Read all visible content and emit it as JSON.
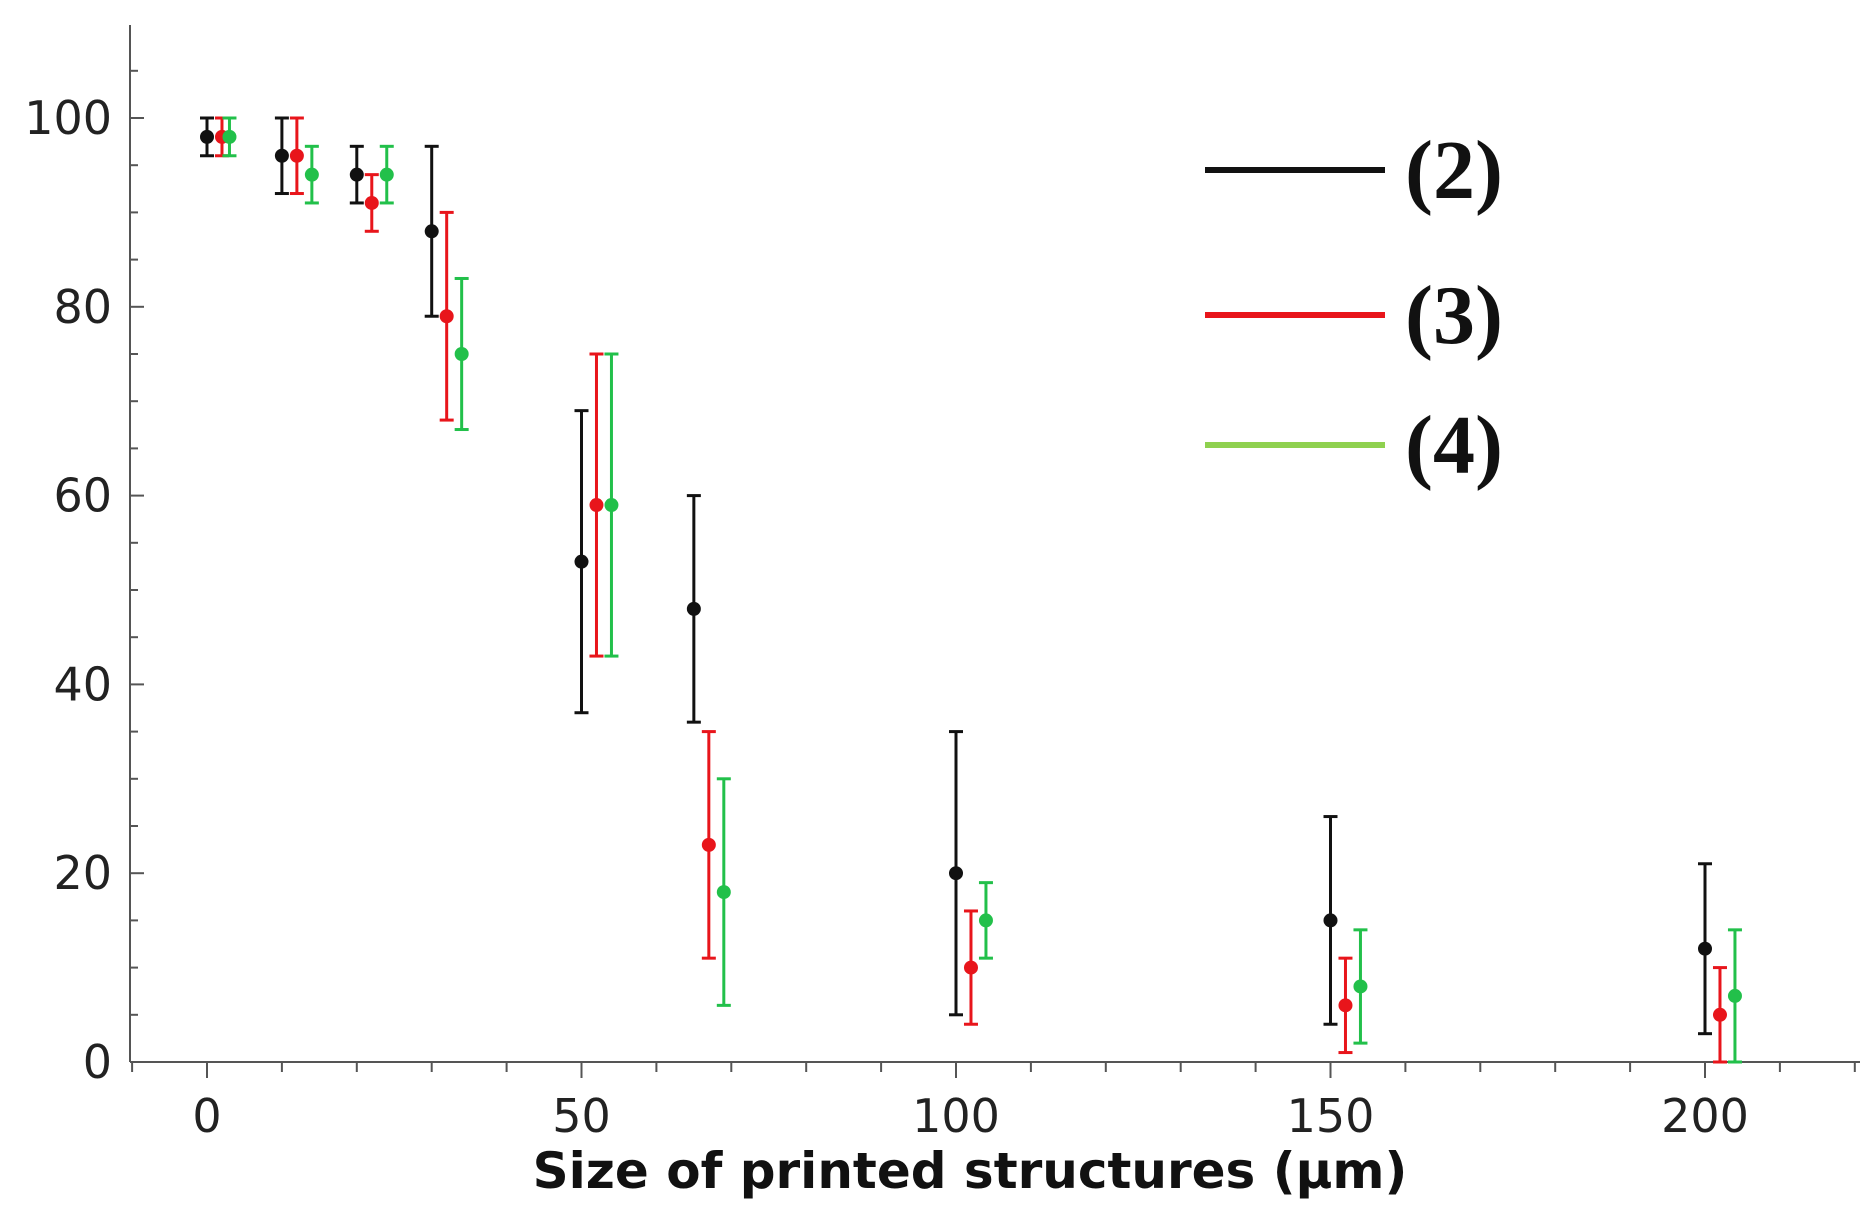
{
  "chart_data": {
    "type": "scatter",
    "title": "",
    "xlabel": "Size of printed structures (µm)",
    "ylabel": "",
    "xlim": [
      -20,
      220
    ],
    "ylim": [
      0,
      110
    ],
    "x_ticks": [
      0,
      50,
      100,
      150,
      200
    ],
    "y_ticks": [
      0,
      20,
      40,
      60,
      80,
      100
    ],
    "x_tick_labels": [
      "0",
      "50",
      "100",
      "150",
      "200"
    ],
    "y_tick_labels": [
      "0",
      "20",
      "40",
      "60",
      "80",
      "100"
    ],
    "grid": false,
    "legend_position": "top-right",
    "error_bars": true,
    "series": [
      {
        "name": "(2)",
        "color": "#111111",
        "points": [
          {
            "x": 0,
            "y": 98,
            "low": 96,
            "high": 100
          },
          {
            "x": 10,
            "y": 96,
            "low": 92,
            "high": 100
          },
          {
            "x": 20,
            "y": 94,
            "low": 91,
            "high": 97
          },
          {
            "x": 30,
            "y": 88,
            "low": 79,
            "high": 97
          },
          {
            "x": 50,
            "y": 53,
            "low": 37,
            "high": 69
          },
          {
            "x": 65,
            "y": 48,
            "low": 36,
            "high": 60
          },
          {
            "x": 100,
            "y": 20,
            "low": 5,
            "high": 35
          },
          {
            "x": 150,
            "y": 15,
            "low": 4,
            "high": 26
          },
          {
            "x": 200,
            "y": 12,
            "low": 3,
            "high": 21
          }
        ]
      },
      {
        "name": "(3)",
        "color": "#e8151b",
        "points": [
          {
            "x": 2,
            "y": 98,
            "low": 96,
            "high": 100
          },
          {
            "x": 12,
            "y": 96,
            "low": 92,
            "high": 100
          },
          {
            "x": 22,
            "y": 91,
            "low": 88,
            "high": 94
          },
          {
            "x": 32,
            "y": 79,
            "low": 68,
            "high": 90
          },
          {
            "x": 52,
            "y": 59,
            "low": 43,
            "high": 75
          },
          {
            "x": 67,
            "y": 23,
            "low": 11,
            "high": 35
          },
          {
            "x": 102,
            "y": 10,
            "low": 4,
            "high": 16
          },
          {
            "x": 152,
            "y": 6,
            "low": 1,
            "high": 11
          },
          {
            "x": 202,
            "y": 5,
            "low": 0,
            "high": 10
          }
        ]
      },
      {
        "name": "(4)",
        "color": "#22c04a",
        "legend_color": "#8fd14f",
        "points": [
          {
            "x": 3,
            "y": 98,
            "low": 96,
            "high": 100
          },
          {
            "x": 14,
            "y": 94,
            "low": 91,
            "high": 97
          },
          {
            "x": 24,
            "y": 94,
            "low": 91,
            "high": 97
          },
          {
            "x": 34,
            "y": 75,
            "low": 67,
            "high": 83
          },
          {
            "x": 54,
            "y": 59,
            "low": 43,
            "high": 75
          },
          {
            "x": 69,
            "y": 18,
            "low": 6,
            "high": 30
          },
          {
            "x": 104,
            "y": 15,
            "low": 11,
            "high": 19
          },
          {
            "x": 154,
            "y": 8,
            "low": 2,
            "high": 14
          },
          {
            "x": 204,
            "y": 7,
            "low": 0,
            "high": 14
          }
        ]
      }
    ]
  }
}
